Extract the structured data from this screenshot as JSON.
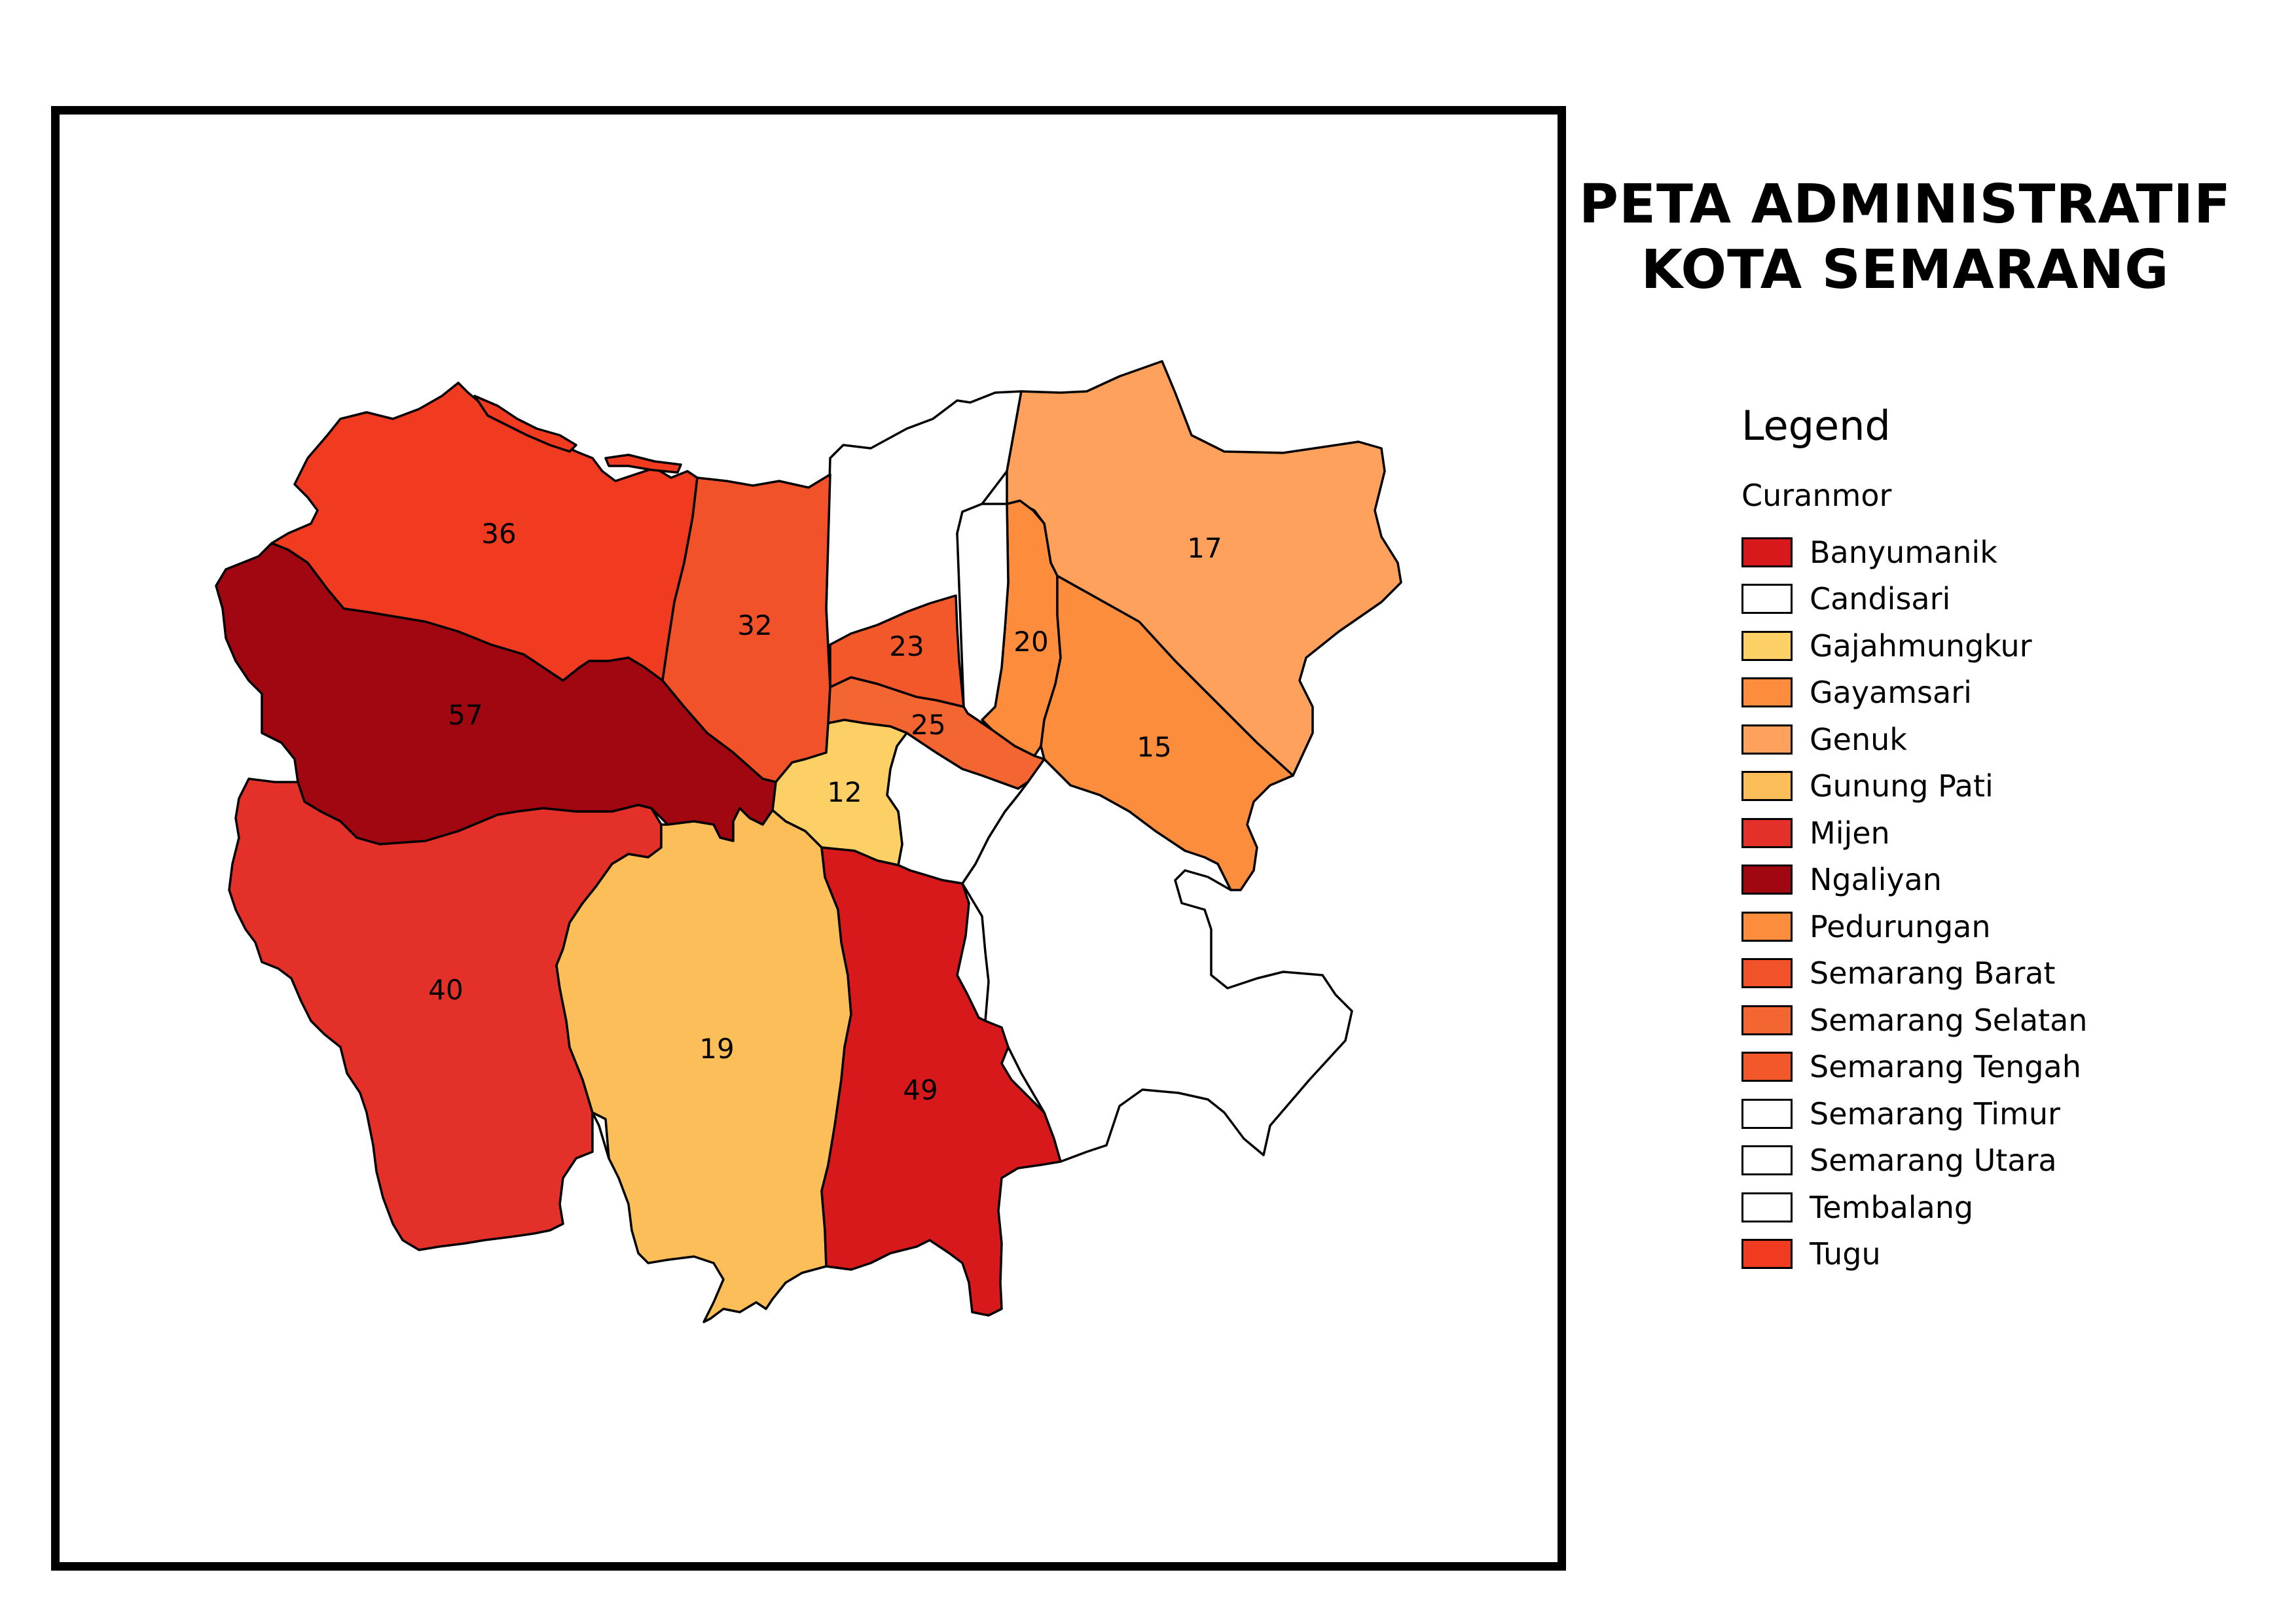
{
  "title": {
    "line1": "PETA ADMINISTRATIF",
    "line2": "KOTA SEMARANG"
  },
  "legend": {
    "title": "Legend",
    "subtitle": "Curanmor",
    "items": [
      {
        "label": "Banyumanik",
        "color": "#d7191c"
      },
      {
        "label": "Candisari",
        "color": "#ffffff"
      },
      {
        "label": "Gajahmungkur",
        "color": "#fdd066"
      },
      {
        "label": "Gayamsari",
        "color": "#fd8d3c"
      },
      {
        "label": "Genuk",
        "color": "#fea15d"
      },
      {
        "label": "Gunung Pati",
        "color": "#fcbe58"
      },
      {
        "label": "Mijen",
        "color": "#e3312a"
      },
      {
        "label": "Ngaliyan",
        "color": "#a00711"
      },
      {
        "label": "Pedurungan",
        "color": "#fb8d3c"
      },
      {
        "label": "Semarang Barat",
        "color": "#f15229"
      },
      {
        "label": "Semarang Selatan",
        "color": "#f46631"
      },
      {
        "label": "Semarang Tengah",
        "color": "#f25829"
      },
      {
        "label": "Semarang Timur",
        "color": "#ffffff"
      },
      {
        "label": "Semarang Utara",
        "color": "#ffffff"
      },
      {
        "label": "Tembalang",
        "color": "#ffffff"
      },
      {
        "label": "Tugu",
        "color": "#f03b20"
      }
    ]
  },
  "districts": [
    {
      "name": "Tugu",
      "value": "36",
      "color": "#f03b20"
    },
    {
      "name": "Semarang Barat",
      "value": "32",
      "color": "#f15229"
    },
    {
      "name": "Ngaliyan",
      "value": "57",
      "color": "#a00711"
    },
    {
      "name": "Mijen",
      "value": "40",
      "color": "#e3312a"
    },
    {
      "name": "Gunung Pati",
      "value": "19",
      "color": "#fcbe58"
    },
    {
      "name": "Banyumanik",
      "value": "49",
      "color": "#d7191c"
    },
    {
      "name": "Gajahmungkur",
      "value": "12",
      "color": "#fdd066"
    },
    {
      "name": "Semarang Tengah",
      "value": "23",
      "color": "#f25829"
    },
    {
      "name": "Semarang Selatan",
      "value": "25",
      "color": "#f46631"
    },
    {
      "name": "Gayamsari",
      "value": "20",
      "color": "#fd8d3c"
    },
    {
      "name": "Genuk",
      "value": "17",
      "color": "#fea15d"
    },
    {
      "name": "Pedurungan",
      "value": "15",
      "color": "#fb8d3c"
    },
    {
      "name": "Semarang Utara",
      "value": "",
      "color": "#ffffff"
    },
    {
      "name": "Semarang Timur",
      "value": "",
      "color": "#ffffff"
    },
    {
      "name": "Candisari",
      "value": "",
      "color": "#ffffff"
    },
    {
      "name": "Tembalang",
      "value": "",
      "color": "#ffffff"
    }
  ]
}
